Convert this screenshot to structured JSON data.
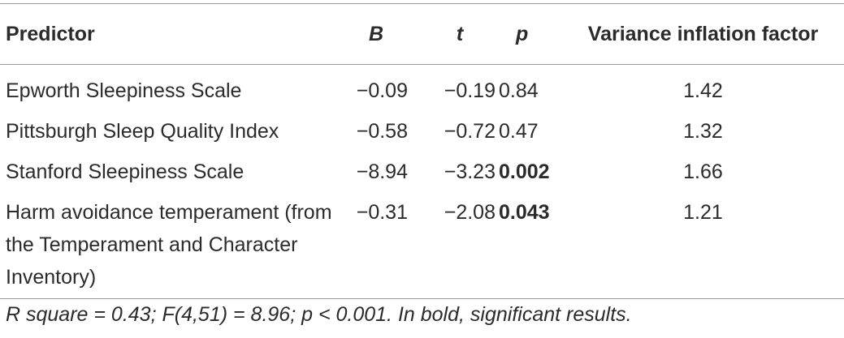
{
  "table": {
    "header": [
      "Predictor",
      "B",
      "t",
      "p",
      "Variance inflation factor"
    ],
    "rows": [
      [
        "Epworth Sleepiness Scale",
        "−0.09",
        "−0.19",
        "0.84",
        "1.42"
      ],
      [
        "Pittsburgh Sleep Quality Index",
        "−0.58",
        "−0.72",
        "0.47",
        "1.32"
      ],
      [
        "Stanford Sleepiness Scale",
        "−8.94",
        "−3.23",
        "0.002",
        "1.66"
      ],
      [
        "Harm avoidance temperament (from the Temperament and Character Inventory)",
        "−0.31",
        "−2.08",
        "0.043",
        "1.21"
      ]
    ],
    "footnote": "R square = 0.43; F(4,51) = 8.96; p < 0.001. In bold, significant results."
  }
}
